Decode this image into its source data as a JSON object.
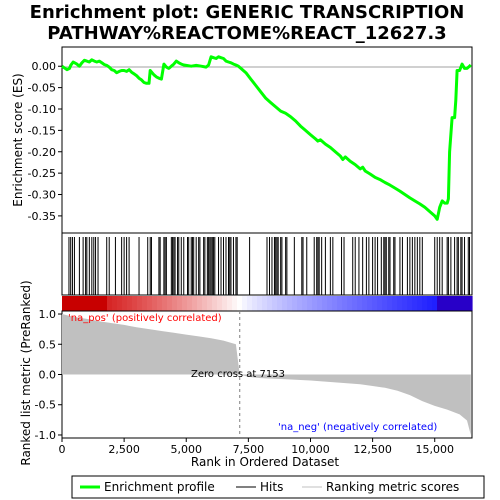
{
  "chart_data": {
    "type": "line",
    "title_line1": "Enrichment plot: GENERIC TRANSCRIPTION",
    "title_line2": "PATHWAY%REACTOME%REACT_12627.3",
    "top_panel": {
      "ylabel": "Enrichment score (ES)",
      "ylim": [
        -0.39,
        0.045
      ],
      "yticks": [
        0.0,
        -0.05,
        -0.1,
        -0.15,
        -0.2,
        -0.25,
        -0.3,
        -0.35
      ],
      "ytick_labels": [
        "0.00",
        "-0.05",
        "-0.10",
        "-0.15",
        "-0.20",
        "-0.25",
        "-0.30",
        "-0.35"
      ],
      "series": [
        {
          "name": "Enrichment profile",
          "color": "#00ff00",
          "x": [
            0,
            200,
            300,
            350,
            450,
            600,
            700,
            800,
            900,
            1000,
            1100,
            1200,
            1300,
            1400,
            1500,
            1600,
            1700,
            1800,
            1900,
            2000,
            2100,
            2200,
            2300,
            2400,
            2500,
            2600,
            2700,
            2800,
            2900,
            3000,
            3100,
            3200,
            3300,
            3400,
            3500,
            3550,
            3700,
            3800,
            3900,
            4000,
            4100,
            4200,
            4300,
            4400,
            4500,
            4600,
            4700,
            4800,
            4900,
            5000,
            5200,
            5400,
            5600,
            5800,
            5900,
            6000,
            6100,
            6200,
            6300,
            6400,
            6500,
            6600,
            6700,
            6800,
            6900,
            7000,
            7100,
            7200,
            7400,
            7600,
            7800,
            8000,
            8200,
            8400,
            8600,
            8800,
            9000,
            9200,
            9400,
            9600,
            9800,
            10000,
            10200,
            10300,
            10400,
            10600,
            10800,
            11000,
            11200,
            11300,
            11400,
            11600,
            11800,
            12000,
            12100,
            12200,
            12400,
            12600,
            12800,
            13000,
            13200,
            13400,
            13600,
            13800,
            14000,
            14200,
            14400,
            14600,
            14800,
            15000,
            15100,
            15200,
            15300,
            15400,
            15500,
            15550,
            15600,
            15700,
            15800,
            15850,
            15900,
            16000,
            16100,
            16200,
            16300,
            16400,
            16450
          ],
          "y": [
            0.0,
            -0.008,
            -0.005,
            0.002,
            0.01,
            0.005,
            0.0,
            0.008,
            0.014,
            0.012,
            0.01,
            0.015,
            0.012,
            0.01,
            0.012,
            0.008,
            0.004,
            0.002,
            -0.002,
            -0.008,
            -0.01,
            -0.015,
            -0.012,
            -0.01,
            -0.01,
            -0.012,
            -0.008,
            -0.014,
            -0.018,
            -0.022,
            -0.028,
            -0.032,
            -0.038,
            -0.04,
            -0.04,
            -0.01,
            -0.02,
            -0.025,
            -0.028,
            -0.03,
            0.005,
            -0.002,
            -0.005,
            0.0,
            0.005,
            0.012,
            0.008,
            0.005,
            0.003,
            0.002,
            0.0,
            0.002,
            0.0,
            -0.002,
            0.003,
            0.022,
            0.02,
            0.018,
            0.022,
            0.02,
            0.018,
            0.012,
            0.01,
            0.008,
            0.005,
            0.003,
            0.0,
            -0.005,
            -0.015,
            -0.03,
            -0.045,
            -0.06,
            -0.075,
            -0.085,
            -0.095,
            -0.105,
            -0.11,
            -0.118,
            -0.128,
            -0.14,
            -0.15,
            -0.16,
            -0.17,
            -0.175,
            -0.172,
            -0.182,
            -0.19,
            -0.2,
            -0.21,
            -0.218,
            -0.212,
            -0.222,
            -0.23,
            -0.24,
            -0.236,
            -0.245,
            -0.252,
            -0.26,
            -0.265,
            -0.272,
            -0.278,
            -0.285,
            -0.292,
            -0.3,
            -0.308,
            -0.315,
            -0.322,
            -0.33,
            -0.34,
            -0.35,
            -0.358,
            -0.33,
            -0.315,
            -0.32,
            -0.32,
            -0.31,
            -0.2,
            -0.12,
            -0.12,
            -0.08,
            -0.01,
            -0.01,
            0.005,
            -0.005,
            -0.005,
            0.0,
            0.003
          ]
        }
      ]
    },
    "hits": {
      "name": "Hits",
      "x": [
        280,
        350,
        420,
        500,
        700,
        850,
        950,
        1000,
        1100,
        1200,
        1280,
        1350,
        1450,
        1800,
        1900,
        2150,
        2400,
        2500,
        2600,
        2700,
        3100,
        3450,
        3550,
        3600,
        3900,
        3950,
        4100,
        4150,
        4200,
        4400,
        4450,
        4500,
        4550,
        4650,
        4700,
        4800,
        4900,
        5050,
        5100,
        5200,
        5250,
        5300,
        5400,
        5500,
        5550,
        5700,
        5750,
        5850,
        5900,
        5950,
        6000,
        6050,
        6100,
        6150,
        6300,
        6400,
        6500,
        6600,
        6700,
        6750,
        6800,
        6900,
        7000,
        7050,
        7550,
        8250,
        8350,
        8450,
        8550,
        8600,
        8650,
        8700,
        8800,
        8850,
        9000,
        9050,
        9350,
        9650,
        9700,
        9850,
        10150,
        10250,
        10300,
        10350,
        10450,
        10600,
        10800,
        10900,
        11250,
        11350,
        11700,
        11800,
        11950,
        12100,
        12250,
        12350,
        12500,
        12600,
        12700,
        12850,
        12950,
        13000,
        13050,
        13150,
        13200,
        13350,
        13400,
        13600,
        13700,
        13900,
        14000,
        14100,
        14200,
        14300,
        14400,
        14500,
        15000,
        15100,
        15200,
        15300,
        15500,
        15550,
        15650,
        15800,
        15900,
        15950,
        16050,
        16100,
        16200,
        16350,
        16400
      ]
    },
    "bottom_panel": {
      "ylabel": "Ranked list metric (PreRanked)",
      "ylim": [
        -1.05,
        1.05
      ],
      "yticks": [
        1.0,
        0.5,
        0.0,
        -0.5,
        -1.0
      ],
      "ytick_labels": [
        "1.0",
        "0.5",
        "0.0",
        "-0.5",
        "-1.0"
      ],
      "metric_x": [
        0,
        200,
        500,
        1000,
        1500,
        2000,
        2500,
        3000,
        3500,
        4000,
        4500,
        5000,
        5500,
        6000,
        6500,
        7000,
        7153,
        7500,
        8000,
        9000,
        10000,
        11000,
        12000,
        12500,
        13000,
        13500,
        14000,
        14500,
        15000,
        15500,
        16000,
        16300,
        16450
      ],
      "metric_y": [
        1.0,
        0.98,
        0.95,
        0.92,
        0.88,
        0.85,
        0.82,
        0.78,
        0.75,
        0.72,
        0.69,
        0.66,
        0.63,
        0.6,
        0.56,
        0.5,
        0.0,
        -0.04,
        -0.06,
        -0.08,
        -0.1,
        -0.13,
        -0.16,
        -0.19,
        -0.22,
        -0.27,
        -0.34,
        -0.44,
        -0.52,
        -0.58,
        -0.66,
        -0.76,
        -1.0
      ],
      "zero_cross_label": "Zero cross at 7153",
      "zero_cross": 7153,
      "pos_label": "'na_pos' (positively correlated)",
      "neg_label": "'na_neg' (negatively correlated)"
    },
    "xlabel": "Rank in Ordered Dataset",
    "xlim": [
      0,
      16500
    ],
    "xticks": [
      0,
      2500,
      5000,
      7500,
      10000,
      12500,
      15000
    ],
    "xtick_labels": [
      "0",
      "2,500",
      "5,000",
      "7,500",
      "10,000",
      "12,500",
      "15,000"
    ],
    "legend": [
      {
        "label": "Enrichment profile",
        "color": "#00ff00"
      },
      {
        "label": "Hits",
        "color": "#000000"
      },
      {
        "label": "Ranking metric scores",
        "color": "#c0c0c0"
      }
    ],
    "colors": {
      "profile": "#00ff00",
      "metric_fill": "#c0c0c0",
      "pos_label": "#ff0000",
      "neg_label": "#0000ff",
      "zero_line": "#808080"
    }
  }
}
